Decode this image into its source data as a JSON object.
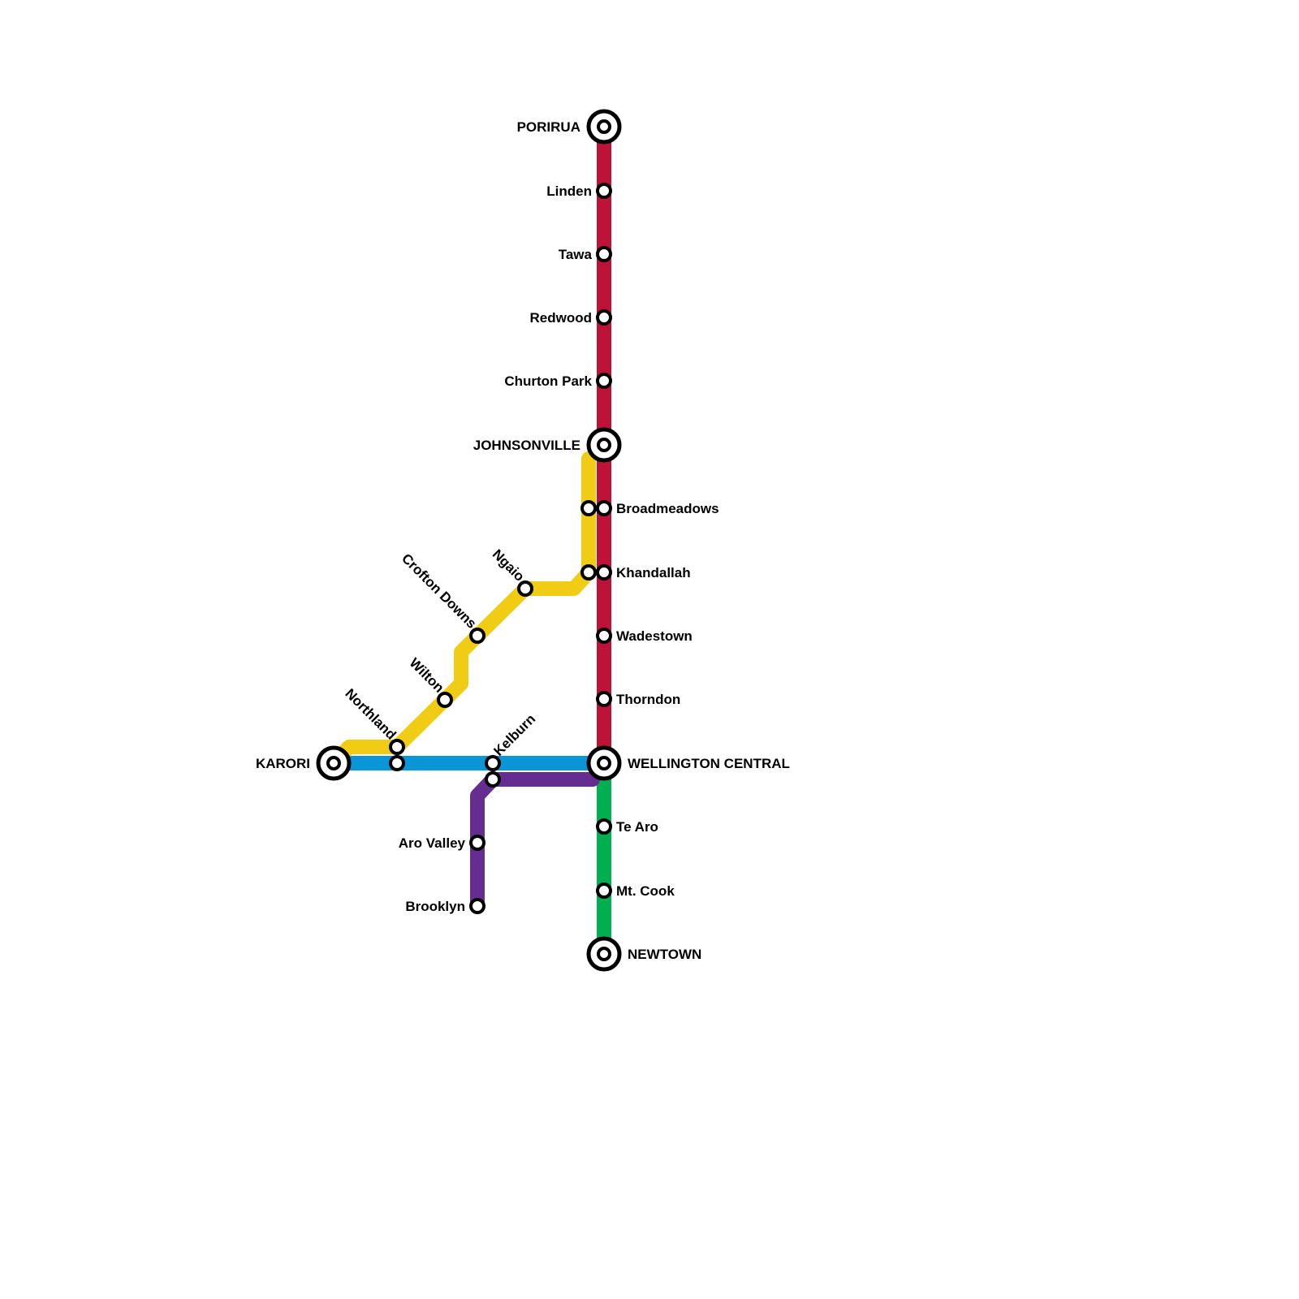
{
  "colors": {
    "red": "#BE1238",
    "green": "#00B050",
    "blue": "#0A96D6",
    "purple": "#662D91",
    "yellow": "#F0CD14"
  },
  "lines": [
    {
      "id": "red",
      "color_key": "red"
    },
    {
      "id": "green",
      "color_key": "green"
    },
    {
      "id": "blue",
      "color_key": "blue"
    },
    {
      "id": "purple",
      "color_key": "purple"
    },
    {
      "id": "yellow",
      "color_key": "yellow"
    }
  ],
  "stations": {
    "porirua": "PORIRUA",
    "linden": "Linden",
    "tawa": "Tawa",
    "redwood": "Redwood",
    "churton_park": "Churton Park",
    "johnsonville": "JOHNSONVILLE",
    "broadmeadows": "Broadmeadows",
    "khandallah": "Khandallah",
    "wadestown": "Wadestown",
    "thorndon": "Thorndon",
    "wellington_central": "WELLINGTON CENTRAL",
    "te_aro": "Te Aro",
    "mt_cook": "Mt. Cook",
    "newtown": "NEWTOWN",
    "karori": "KARORI",
    "northland": "Northland",
    "kelburn": "Kelburn",
    "aro_valley": "Aro Valley",
    "brooklyn": "Brooklyn",
    "wilton": "Wilton",
    "crofton_downs": "Crofton Downs",
    "ngaio": "Ngaio"
  }
}
